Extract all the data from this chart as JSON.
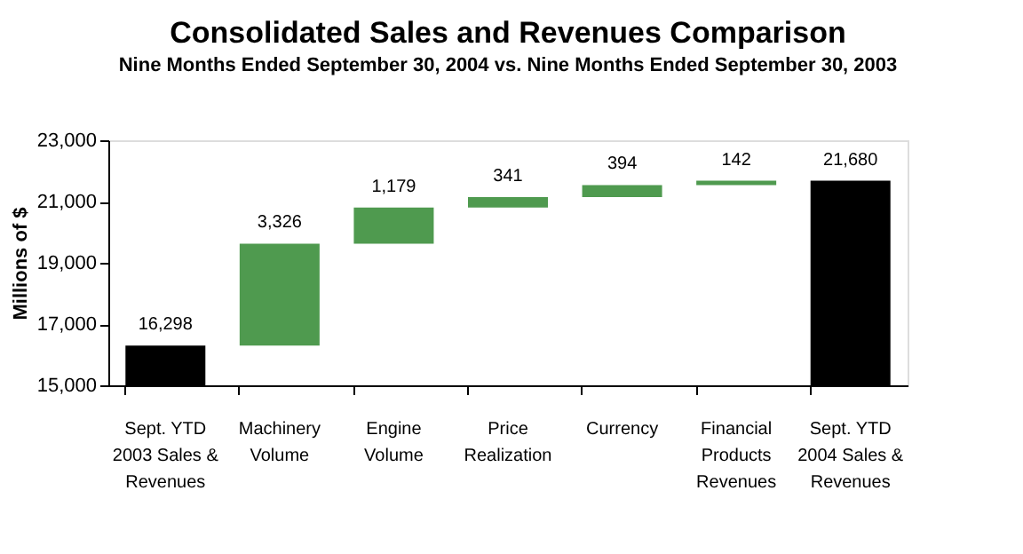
{
  "chart_data": {
    "type": "bar",
    "title": "Consolidated Sales and Revenues Comparison",
    "subtitle": "Nine Months Ended September 30, 2004 vs. Nine Months Ended September 30, 2003",
    "ylabel": "Millions of $",
    "categories": [
      "Sept. YTD 2003 Sales & Revenues",
      "Machinery Volume",
      "Engine Volume",
      "Price Realization",
      "Currency",
      "Financial Products Revenues",
      "Sept. YTD 2004 Sales & Revenues"
    ],
    "values": [
      16298,
      3326,
      1179,
      341,
      394,
      142,
      21680
    ],
    "base": [
      0,
      16298,
      19624,
      20803,
      21144,
      21538,
      0
    ],
    "colors": [
      "#000000",
      "#4f9a4f",
      "#4f9a4f",
      "#4f9a4f",
      "#4f9a4f",
      "#4f9a4f",
      "#000000"
    ],
    "value_labels": [
      "16,298",
      "3,326",
      "1,179",
      "341",
      "394",
      "142",
      "21,680"
    ],
    "ylim": [
      15000,
      23000
    ],
    "yticks": [
      {
        "value": 15000,
        "label": "15,000"
      },
      {
        "value": 17000,
        "label": "17,000"
      },
      {
        "value": 19000,
        "label": "19,000"
      },
      {
        "value": 21000,
        "label": "21,000"
      },
      {
        "value": 23000,
        "label": "23,000"
      }
    ],
    "grid": false
  }
}
